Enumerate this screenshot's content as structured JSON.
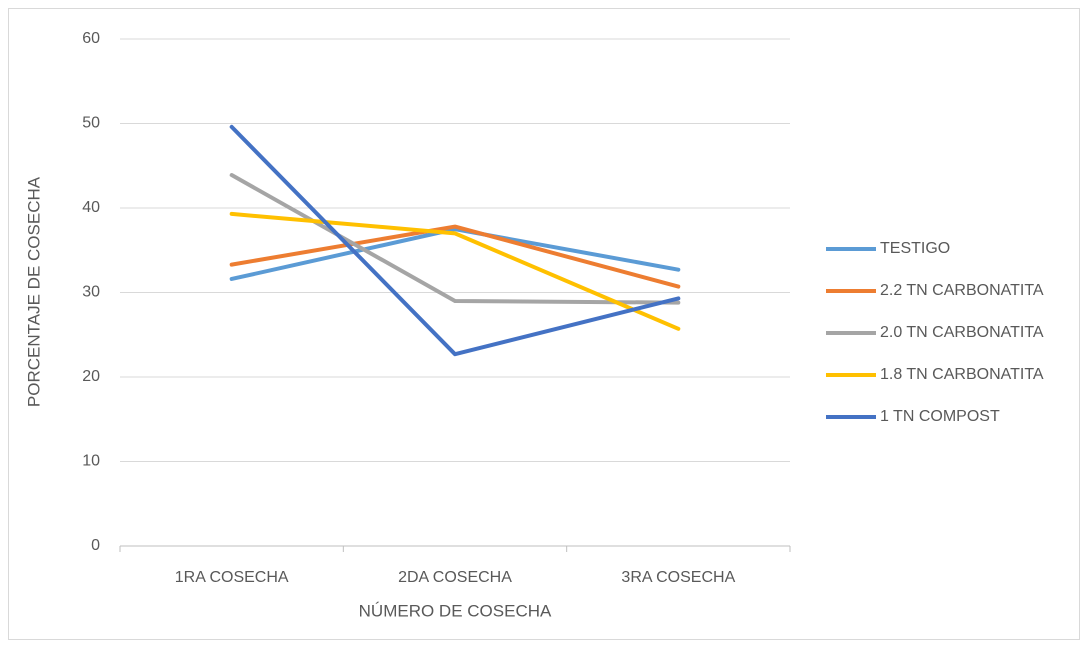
{
  "chart_data": {
    "type": "line",
    "categories": [
      "1RA COSECHA",
      "2DA COSECHA",
      "3RA COSECHA"
    ],
    "x_label": "NÚMERO DE COSECHA",
    "y_label": "PORCENTAJE DE COSECHA",
    "ylim": [
      0,
      60
    ],
    "yticks": [
      0,
      10,
      20,
      30,
      40,
      50,
      60
    ],
    "grid": true,
    "legend": "right",
    "series": [
      {
        "name": "TESTIGO",
        "color": "#5b9bd5",
        "values": [
          31.6,
          37.5,
          32.7
        ]
      },
      {
        "name": "2.2 TN CARBONATITA",
        "color": "#ed7d31",
        "values": [
          33.3,
          37.8,
          30.7
        ]
      },
      {
        "name": "2.0 TN CARBONATITA",
        "color": "#a5a5a5",
        "values": [
          43.9,
          29.0,
          28.8
        ]
      },
      {
        "name": "1.8 TN CARBONATITA",
        "color": "#ffc000",
        "values": [
          39.3,
          37.0,
          25.7
        ]
      },
      {
        "name": "1 TN COMPOST",
        "color": "#4472c4",
        "values": [
          49.6,
          22.7,
          29.3
        ]
      }
    ]
  }
}
